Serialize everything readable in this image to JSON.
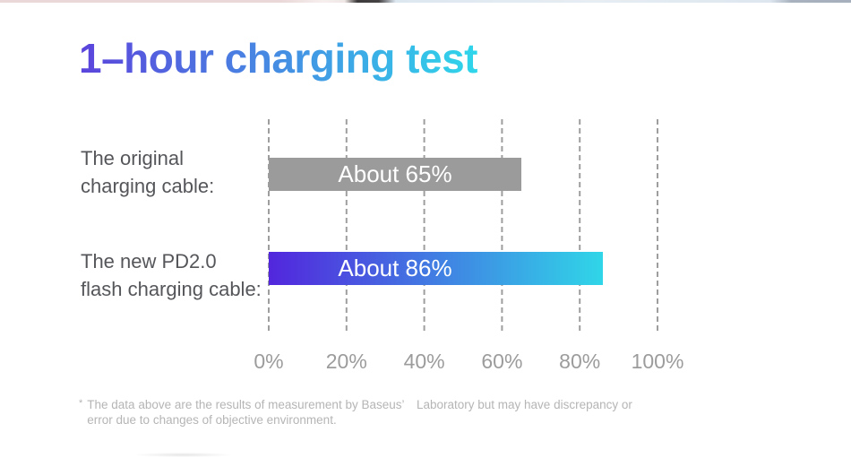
{
  "chart_data": {
    "type": "bar",
    "orientation": "horizontal",
    "title": "1–hour charging test",
    "rows": [
      {
        "category_lines": [
          "The original",
          "charging cable:"
        ],
        "value": 65,
        "bar_label": "About 65%",
        "color": "#9b9b9b"
      },
      {
        "category_lines": [
          "The new PD2.0",
          "flash charging cable:"
        ],
        "value": 86,
        "bar_label": "About 86%",
        "color_start": "#5226dd",
        "color_end": "#30d6e8"
      }
    ],
    "x_axis": {
      "lim": [
        0,
        100
      ],
      "ticks": [
        {
          "value": 0,
          "label": "0%"
        },
        {
          "value": 20,
          "label": "20%"
        },
        {
          "value": 40,
          "label": "40%"
        },
        {
          "value": 60,
          "label": "60%"
        },
        {
          "value": 80,
          "label": "80%"
        },
        {
          "value": 100,
          "label": "100%"
        }
      ],
      "gridlines": "dashed-vertical"
    },
    "value_unit": "%",
    "legend": "none"
  },
  "theme": {
    "title_gradient": [
      "#5b44dc",
      "#2fd6ea"
    ],
    "bar_text_color": "#ffffff",
    "category_text_color": "#55565a",
    "axis_text_color": "#9c9c9c",
    "gridline_color": "#9e9e9e",
    "footnote_color": "#b5b5b5"
  },
  "footnote": {
    "marker": "*",
    "line1": "The data above are the results of measurement by Baseus’ Laboratory but may have discrepancy or",
    "line2": "error due to changes of objective environment."
  }
}
